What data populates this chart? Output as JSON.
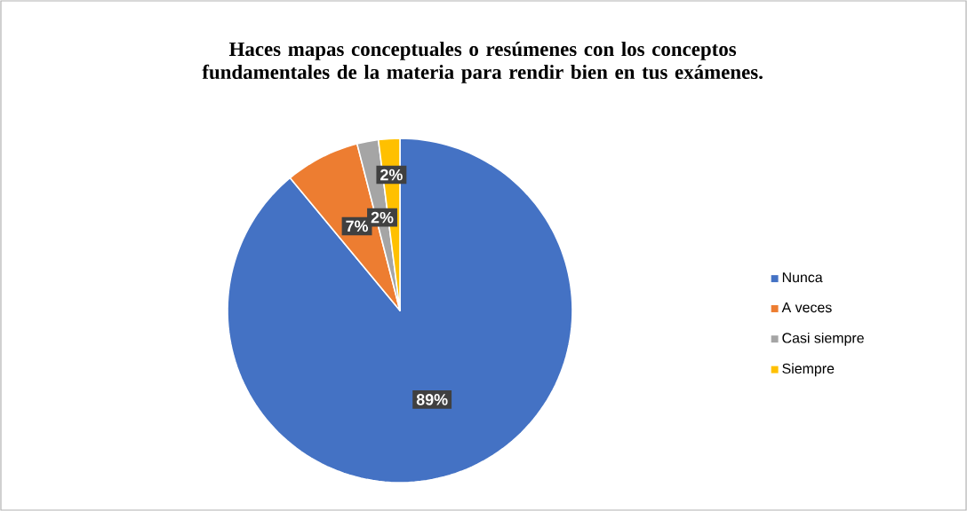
{
  "chart_data": {
    "type": "pie",
    "title": "Haces mapas conceptuales o resúmenes con los conceptos fundamentales de la materia para rendir bien en tus exámenes.",
    "categories": [
      "Nunca",
      "A veces",
      "Casi siempre",
      "Siempre"
    ],
    "values": [
      89,
      7,
      2,
      2
    ],
    "value_labels": [
      "89%",
      "7%",
      "2%",
      "2%"
    ],
    "colors": [
      "#4472c4",
      "#ed7d31",
      "#a5a5a5",
      "#ffc000"
    ],
    "legend": "right"
  }
}
